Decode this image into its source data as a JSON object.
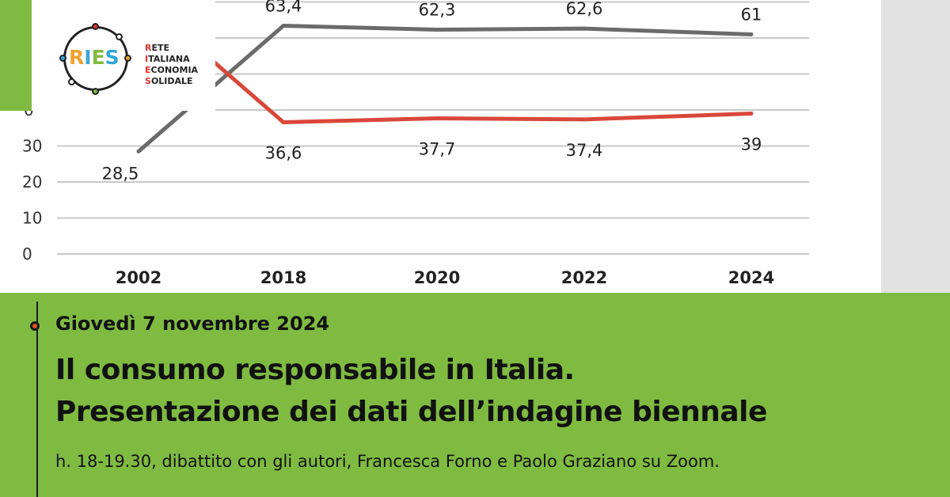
{
  "colors": {
    "banner_green": "#7fbb41",
    "series_gray": "#6b6b6b",
    "series_red": "#d9473a",
    "timeline_dot": "#e2571e"
  },
  "chart_data": {
    "type": "line",
    "categories": [
      "2002",
      "2018",
      "2020",
      "2022",
      "2024"
    ],
    "y_tick_labels": [
      "0",
      "10",
      "20",
      "30"
    ],
    "ylim": [
      0,
      70
    ],
    "grid": true,
    "series": [
      {
        "color": "#6b6b6b",
        "values": [
          28.5,
          63.4,
          62.3,
          62.6,
          61
        ],
        "labels": [
          "28,5",
          "63,4",
          "62,3",
          "62,6",
          "61"
        ]
      },
      {
        "color": "#d9473a",
        "values": [
          71.5,
          36.6,
          37.7,
          37.4,
          39
        ],
        "labels": [
          "",
          "36,6",
          "37,7",
          "37,4",
          "39"
        ]
      }
    ]
  },
  "logo": {
    "acronym": [
      "R",
      "I",
      "E",
      "S"
    ],
    "acronym_colors": [
      "#f2a12e",
      "#3ba7db",
      "#7fbb41",
      "#2fa7d8"
    ],
    "caption_lines": [
      {
        "initial": "R",
        "rest": "ETE"
      },
      {
        "initial": "I",
        "rest": "TALIANA"
      },
      {
        "initial": "E",
        "rest": "CONOMIA"
      },
      {
        "initial": "S",
        "rest": "OLIDALE"
      }
    ]
  },
  "event": {
    "date": "Giovedì 7 novembre 2024",
    "title_line_1": "Il consumo responsabile in Italia.",
    "title_line_2": "Presentazione dei dati dell’indagine biennale",
    "details": "h. 18-19.30, dibattito con gli autori, Francesca Forno e Paolo Graziano su Zoom."
  }
}
